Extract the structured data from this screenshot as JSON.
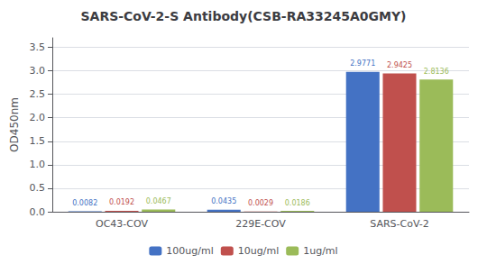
{
  "chart_data": {
    "type": "bar",
    "title": "SARS-CoV-2-S Antibody(CSB-RA33245A0GMY)",
    "y_label": "OD450nm",
    "categories": [
      "OC43-COV",
      "229E-COV",
      "SARS-CoV-2"
    ],
    "series": [
      {
        "name": "100ug/ml",
        "color": "#4472C4",
        "values": [
          0.0082,
          0.0435,
          2.9771
        ]
      },
      {
        "name": "10ug/ml",
        "color": "#C0504D",
        "values": [
          0.0192,
          0.0029,
          2.9425
        ]
      },
      {
        "name": "1ug/ml",
        "color": "#9BBB59",
        "values": [
          0.0467,
          0.0186,
          2.8136
        ]
      }
    ],
    "ylim": [
      0,
      3.7
    ],
    "yticks": [
      {
        "value": 0,
        "label": "0.0"
      },
      0.5,
      {
        "value": 1,
        "label": "1.0"
      },
      1.5,
      {
        "value": 2,
        "label": "2.0"
      },
      2.5,
      {
        "value": 3,
        "label": "3.0"
      },
      3.5
    ],
    "grid": true,
    "legend": "bottom",
    "data_labels": true
  }
}
